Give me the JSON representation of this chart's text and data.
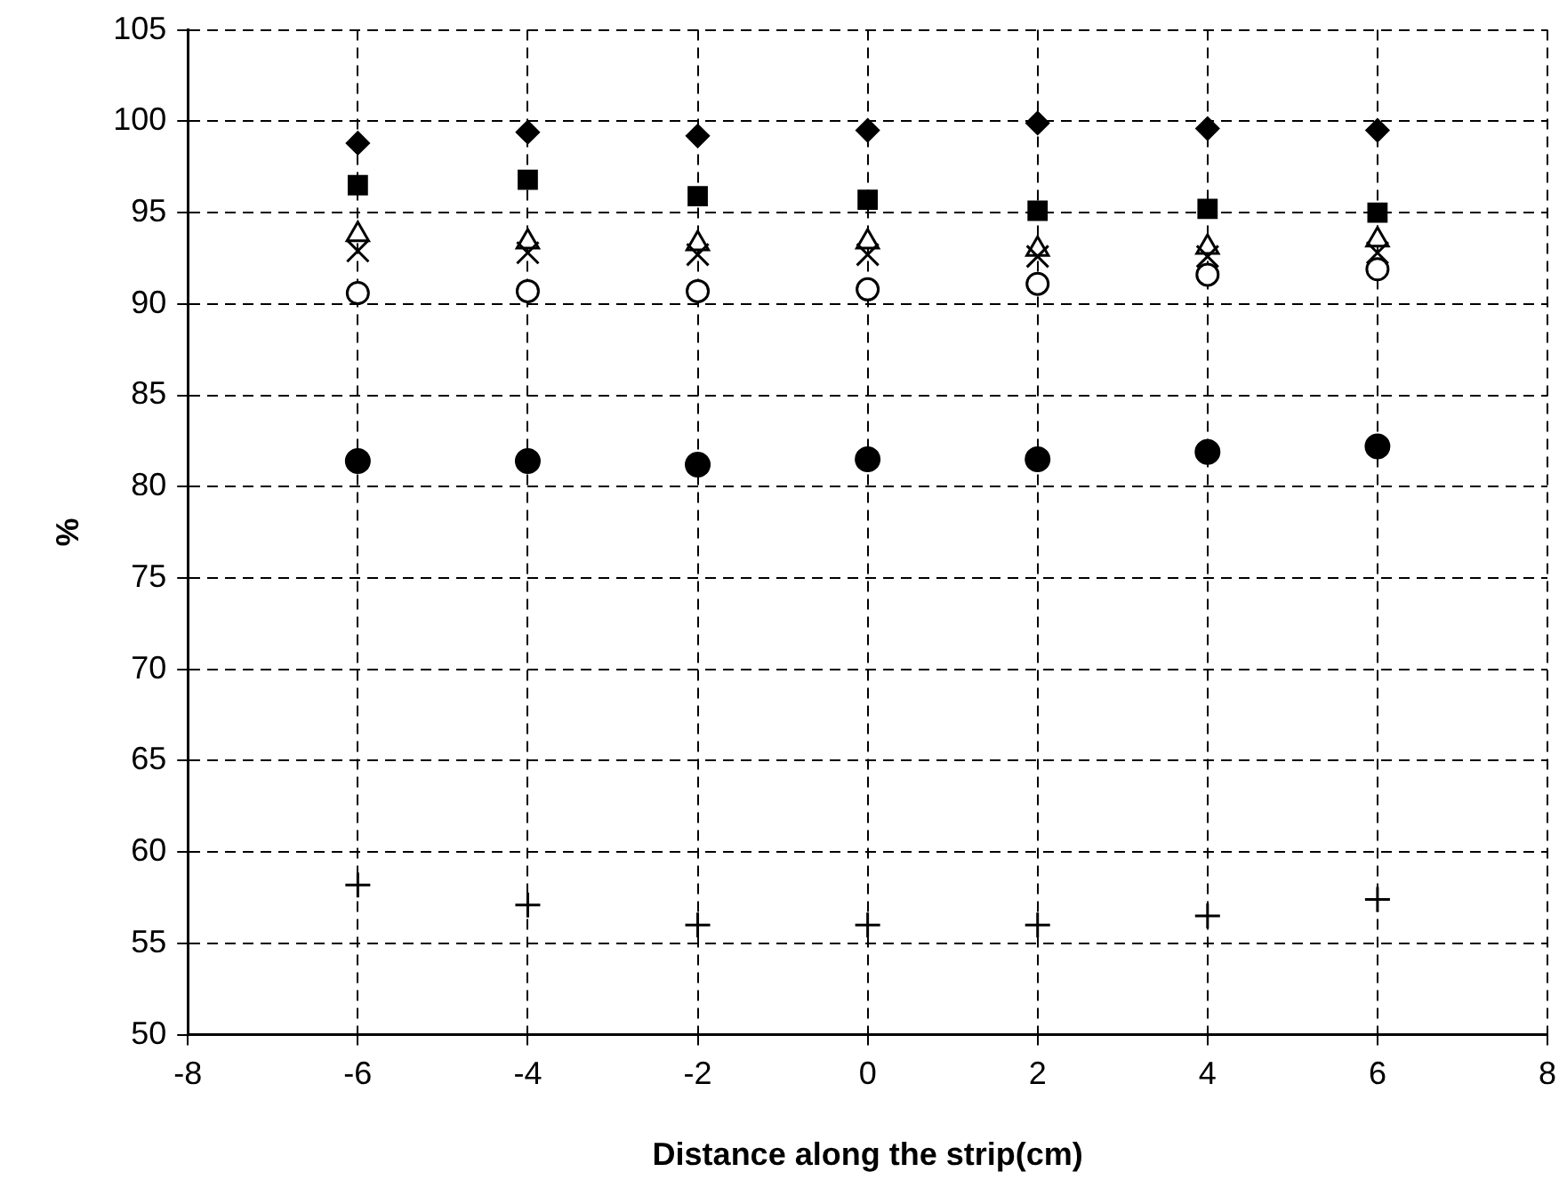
{
  "chart_data": {
    "type": "scatter",
    "xlabel": "Distance along the strip(cm)",
    "ylabel": "%",
    "x": [
      -6,
      -4,
      -2,
      0,
      2,
      4,
      6
    ],
    "xlim": [
      -8,
      8
    ],
    "xticks": [
      -8,
      -6,
      -4,
      -2,
      0,
      2,
      4,
      6,
      8
    ],
    "ylim": [
      50,
      105
    ],
    "yticks": [
      50,
      55,
      60,
      65,
      70,
      75,
      80,
      85,
      90,
      95,
      100,
      105
    ],
    "grid": true,
    "legend": false,
    "series": [
      {
        "color": "#000000",
        "marker": "diamond",
        "values": [
          98.8,
          99.4,
          99.2,
          99.5,
          99.9,
          99.6,
          99.5
        ]
      },
      {
        "color": "#000000",
        "marker": "square",
        "values": [
          96.5,
          96.8,
          95.9,
          95.7,
          95.1,
          95.2,
          95.0
        ]
      },
      {
        "color": "#000000",
        "marker": "triangle_open",
        "values": [
          93.8,
          93.4,
          93.3,
          93.4,
          93.0,
          93.1,
          93.5
        ]
      },
      {
        "color": "#000000",
        "marker": "x",
        "values": [
          92.9,
          92.8,
          92.7,
          92.7,
          92.6,
          92.6,
          92.8
        ]
      },
      {
        "color": "#000000",
        "marker": "circle_open",
        "values": [
          90.6,
          90.7,
          90.7,
          90.8,
          91.1,
          91.6,
          91.9
        ]
      },
      {
        "color": "#000000",
        "marker": "circle",
        "values": [
          81.4,
          81.4,
          81.2,
          81.5,
          81.5,
          81.9,
          82.2
        ]
      },
      {
        "color": "#000000",
        "marker": "plus",
        "values": [
          58.2,
          57.1,
          56.0,
          56.0,
          56.0,
          56.5,
          57.4
        ]
      }
    ]
  }
}
